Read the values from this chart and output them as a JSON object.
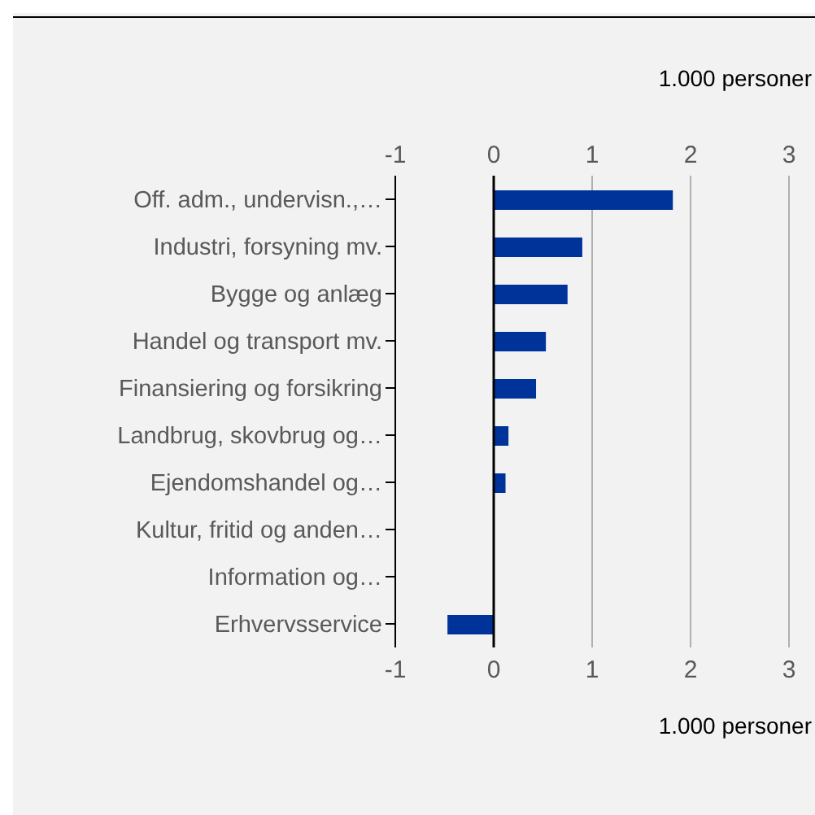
{
  "chart_data": {
    "type": "bar",
    "orientation": "horizontal",
    "categories": [
      "Off. adm., undervisn.,…",
      "Industri, forsyning mv.",
      "Bygge og anlæg",
      "Handel og transport mv.",
      "Finansiering og forsikring",
      "Landbrug, skovbrug og…",
      "Ejendomshandel og…",
      "Kultur, fritid og anden…",
      "Information og…",
      "Erhvervsservice"
    ],
    "values": [
      1.82,
      0.9,
      0.75,
      0.53,
      0.43,
      0.15,
      0.12,
      null,
      null,
      -0.47
    ],
    "color": "#003399",
    "xlabel": "1.000 personer",
    "x2label": "1.000 personer",
    "xlim": [
      -1,
      3
    ],
    "xticks": [
      -1,
      0,
      1,
      2,
      3
    ],
    "x2lim": [
      -1,
      3
    ],
    "x2ticks": [
      -1,
      0,
      1,
      2,
      3
    ],
    "grid": "x",
    "legend": false,
    "ref_lines": [
      {
        "axis": "x",
        "value": 0,
        "color": "#000000"
      }
    ]
  }
}
